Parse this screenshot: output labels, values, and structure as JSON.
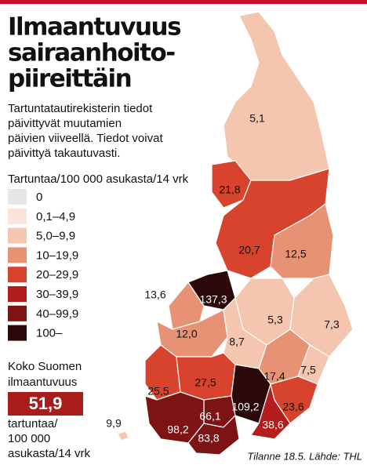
{
  "header": {
    "title": [
      "Ilmaantuvuus",
      "sairaanhoito-",
      "piireittäin"
    ],
    "intro": [
      "Tartuntatautirekisterin tiedot",
      "päivittyvät muutamien",
      "päivien viiveellä. Tiedot voivat",
      "päivittyä takautuvasti."
    ]
  },
  "legend": {
    "title": "Tartuntaa/100 000 asukasta/14 vrk",
    "items": [
      {
        "label": "0",
        "color": "#e6e6e6"
      },
      {
        "label": "0,1–4,9",
        "color": "#fae3d8"
      },
      {
        "label": "5,0–9,9",
        "color": "#f5c6af"
      },
      {
        "label": "10–19,9",
        "color": "#e79275"
      },
      {
        "label": "20–29,9",
        "color": "#d8432d"
      },
      {
        "label": "30–39,9",
        "color": "#b41d1d"
      },
      {
        "label": "40–99,9",
        "color": "#7d1313"
      },
      {
        "label": "100–",
        "color": "#2c0909"
      }
    ]
  },
  "summary": {
    "title": [
      "Koko Suomen",
      "ilmaantuvuus"
    ],
    "value": "51,9",
    "color": "#a81c1c",
    "unit": [
      "tartuntaa/",
      "100 000",
      "asukasta/14 vrk"
    ]
  },
  "regions": [
    {
      "label": "5,1",
      "color": "#f5c6af"
    },
    {
      "label": "21,8",
      "color": "#d8432d"
    },
    {
      "label": "20,7",
      "color": "#d8432d"
    },
    {
      "label": "12,5",
      "color": "#e79275"
    },
    {
      "label": "137,3",
      "color": "#2c0909"
    },
    {
      "label": "13,6",
      "color": "#e79275"
    },
    {
      "label": "12,0",
      "color": "#e79275"
    },
    {
      "label": "5,3",
      "color": "#f5c6af"
    },
    {
      "label": "7,3",
      "color": "#f5c6af"
    },
    {
      "label": "8,7",
      "color": "#f5c6af"
    },
    {
      "label": "17,4",
      "color": "#e79275"
    },
    {
      "label": "7,5",
      "color": "#f5c6af"
    },
    {
      "label": "25,5",
      "color": "#d8432d"
    },
    {
      "label": "27,5",
      "color": "#d8432d"
    },
    {
      "label": "109,2",
      "color": "#2c0909"
    },
    {
      "label": "66,1",
      "color": "#7d1313"
    },
    {
      "label": "98,2",
      "color": "#7d1313"
    },
    {
      "label": "83,8",
      "color": "#7d1313"
    },
    {
      "label": "38,6",
      "color": "#b41d1d"
    },
    {
      "label": "23,6",
      "color": "#d8432d"
    },
    {
      "label": "9,9",
      "color": "#f5c6af"
    }
  ],
  "source": "Tilanne 18.5. Lähde: THL"
}
